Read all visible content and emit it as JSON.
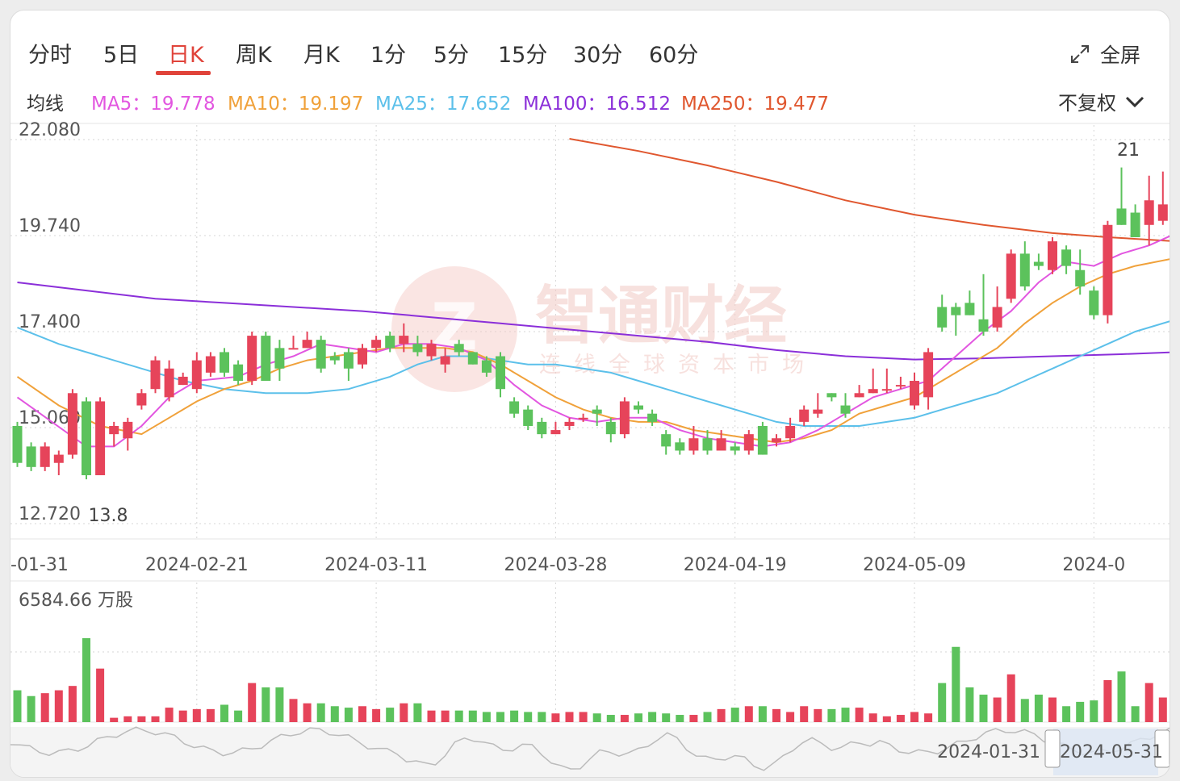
{
  "tabs": [
    {
      "label": "分时"
    },
    {
      "label": "5日"
    },
    {
      "label": "日K"
    },
    {
      "label": "周K"
    },
    {
      "label": "月K"
    },
    {
      "label": "1分"
    },
    {
      "label": "5分"
    },
    {
      "label": "15分"
    },
    {
      "label": "30分"
    },
    {
      "label": "60分"
    }
  ],
  "active_tab": "日K",
  "fullscreen_label": "全屏",
  "ma_header": "均线",
  "ma_legend": [
    {
      "label": "MA5：19.778",
      "color": "#e256e0"
    },
    {
      "label": "MA10：19.197",
      "color": "#f0a13a"
    },
    {
      "label": "MA25：17.652",
      "color": "#5cc0ea"
    },
    {
      "label": "MA100：16.512",
      "color": "#8b2fd9"
    },
    {
      "label": "MA250：19.477",
      "color": "#e0572f"
    }
  ],
  "adjust_label": "不复权",
  "watermark": {
    "title": "智通财经",
    "subtitle": "连线全球资本市场"
  },
  "colors": {
    "up": "#e6445a",
    "down": "#5cc25c",
    "grid": "#d6d6d6"
  },
  "chart_data": {
    "type": "candlestick",
    "y_ticks": [
      "22.080",
      "19.740",
      "17.400",
      "15.060",
      "12.720"
    ],
    "ylim": [
      12.72,
      22.08
    ],
    "x_ticks": [
      {
        "label": "-01-31",
        "index": 0
      },
      {
        "label": "2024-02-21",
        "index": 13
      },
      {
        "label": "2024-03-11",
        "index": 26
      },
      {
        "label": "2024-03-28",
        "index": 39
      },
      {
        "label": "2024-04-19",
        "index": 52
      },
      {
        "label": "2024-05-09",
        "index": 65
      },
      {
        "label": "2024-0",
        "index": 78
      }
    ],
    "high_label": "21",
    "low_label": "13.8",
    "candles": [
      [
        15.1,
        14.2,
        15.2,
        14.1
      ],
      [
        14.6,
        14.1,
        14.7,
        14.0
      ],
      [
        14.1,
        14.6,
        14.7,
        14.0
      ],
      [
        14.2,
        14.4,
        14.5,
        13.9
      ],
      [
        14.4,
        15.9,
        16.0,
        14.3
      ],
      [
        15.7,
        13.9,
        15.8,
        13.8
      ],
      [
        13.9,
        15.7,
        15.8,
        13.9
      ],
      [
        14.9,
        15.1,
        15.2,
        14.6
      ],
      [
        14.8,
        15.2,
        15.3,
        14.5
      ],
      [
        15.6,
        15.9,
        16.0,
        15.5
      ],
      [
        16.0,
        16.7,
        16.8,
        15.9
      ],
      [
        15.8,
        16.5,
        16.7,
        15.7
      ],
      [
        16.1,
        16.3,
        16.4,
        16.1
      ],
      [
        16.0,
        16.7,
        16.9,
        15.9
      ],
      [
        16.4,
        16.8,
        16.9,
        16.3
      ],
      [
        16.9,
        16.4,
        17.0,
        16.3
      ],
      [
        16.6,
        16.2,
        16.7,
        16.1
      ],
      [
        16.2,
        17.3,
        17.4,
        16.1
      ],
      [
        17.3,
        16.2,
        17.4,
        16.2
      ],
      [
        17.0,
        16.5,
        17.2,
        16.2
      ],
      [
        17.0,
        17.0,
        17.3,
        17.0
      ],
      [
        17.0,
        17.2,
        17.4,
        17.0
      ],
      [
        17.2,
        16.5,
        17.3,
        16.4
      ],
      [
        16.8,
        16.7,
        16.9,
        16.6
      ],
      [
        16.9,
        16.5,
        17.0,
        16.2
      ],
      [
        16.6,
        17.0,
        17.1,
        16.5
      ],
      [
        17.0,
        17.2,
        17.3,
        16.9
      ],
      [
        17.3,
        17.0,
        17.4,
        16.9
      ],
      [
        17.1,
        17.3,
        17.6,
        16.9
      ],
      [
        17.1,
        16.9,
        17.3,
        16.8
      ],
      [
        16.8,
        17.1,
        17.2,
        16.7
      ],
      [
        16.6,
        16.8,
        17.0,
        16.4
      ],
      [
        17.1,
        16.9,
        17.2,
        16.8
      ],
      [
        16.9,
        16.6,
        16.9,
        16.6
      ],
      [
        16.7,
        16.4,
        16.8,
        16.3
      ],
      [
        16.8,
        16.0,
        16.9,
        15.8
      ],
      [
        15.7,
        15.4,
        15.8,
        15.3
      ],
      [
        15.5,
        15.1,
        15.6,
        15.0
      ],
      [
        15.2,
        14.9,
        15.3,
        14.8
      ],
      [
        14.9,
        15.0,
        15.2,
        14.9
      ],
      [
        15.1,
        15.2,
        15.3,
        15.0
      ],
      [
        15.3,
        15.3,
        15.4,
        15.2
      ],
      [
        15.5,
        15.4,
        15.6,
        15.1
      ],
      [
        15.2,
        14.9,
        15.3,
        14.7
      ],
      [
        14.9,
        15.7,
        15.8,
        14.8
      ],
      [
        15.6,
        15.5,
        15.7,
        15.4
      ],
      [
        15.4,
        15.2,
        15.5,
        15.1
      ],
      [
        14.9,
        14.6,
        15.0,
        14.4
      ],
      [
        14.7,
        14.5,
        14.8,
        14.4
      ],
      [
        14.5,
        14.8,
        15.1,
        14.4
      ],
      [
        14.8,
        14.5,
        15.0,
        14.4
      ],
      [
        14.5,
        14.8,
        15.0,
        14.6
      ],
      [
        14.6,
        14.5,
        14.7,
        14.4
      ],
      [
        14.5,
        14.9,
        15.0,
        14.4
      ],
      [
        15.1,
        14.4,
        15.2,
        14.4
      ],
      [
        14.7,
        14.8,
        14.9,
        14.6
      ],
      [
        14.8,
        15.1,
        15.3,
        14.7
      ],
      [
        15.2,
        15.5,
        15.6,
        15.1
      ],
      [
        15.4,
        15.5,
        15.9,
        15.3
      ],
      [
        15.9,
        15.8,
        15.9,
        15.7
      ],
      [
        15.6,
        15.4,
        15.9,
        15.3
      ],
      [
        15.8,
        15.9,
        16.1,
        15.8
      ],
      [
        15.9,
        16.0,
        16.5,
        15.9
      ],
      [
        16.0,
        16.0,
        16.5,
        15.9
      ],
      [
        16.1,
        16.1,
        16.3,
        16.0
      ],
      [
        15.6,
        16.2,
        16.4,
        15.5
      ],
      [
        15.8,
        16.9,
        17.0,
        15.5
      ],
      [
        18.0,
        17.5,
        18.3,
        17.4
      ],
      [
        18.0,
        17.8,
        18.1,
        17.3
      ],
      [
        18.1,
        17.8,
        18.4,
        17.8
      ],
      [
        17.7,
        17.4,
        18.8,
        17.3
      ],
      [
        17.5,
        18.0,
        18.5,
        17.4
      ],
      [
        18.2,
        19.3,
        19.4,
        18.1
      ],
      [
        19.3,
        18.5,
        19.6,
        18.4
      ],
      [
        19.1,
        19.0,
        19.3,
        18.9
      ],
      [
        18.9,
        19.6,
        19.7,
        18.8
      ],
      [
        19.4,
        19.0,
        19.5,
        18.8
      ],
      [
        18.9,
        18.5,
        19.4,
        18.3
      ],
      [
        18.4,
        17.8,
        18.5,
        17.7
      ],
      [
        17.8,
        20.0,
        20.1,
        17.6
      ],
      [
        20.4,
        20.0,
        21.4,
        20.0
      ],
      [
        20.3,
        19.7,
        20.5,
        19.7
      ],
      [
        20.0,
        20.6,
        21.2,
        19.5
      ],
      [
        20.1,
        20.5,
        21.3,
        20.0
      ]
    ],
    "ma5": [
      [
        0,
        15.8
      ],
      [
        5,
        14.6
      ],
      [
        7,
        14.6
      ],
      [
        9,
        15.1
      ],
      [
        11,
        15.8
      ],
      [
        13,
        16.2
      ],
      [
        16,
        16.3
      ],
      [
        18,
        16.6
      ],
      [
        20,
        16.8
      ],
      [
        22,
        17.1
      ],
      [
        24,
        17.0
      ],
      [
        26,
        16.9
      ],
      [
        28,
        17.1
      ],
      [
        30,
        17.1
      ],
      [
        32,
        17.0
      ],
      [
        34,
        16.7
      ],
      [
        36,
        16.1
      ],
      [
        38,
        15.6
      ],
      [
        40,
        15.3
      ],
      [
        42,
        15.2
      ],
      [
        44,
        15.3
      ],
      [
        46,
        15.3
      ],
      [
        48,
        15.0
      ],
      [
        50,
        14.8
      ],
      [
        52,
        14.7
      ],
      [
        54,
        14.6
      ],
      [
        56,
        14.7
      ],
      [
        58,
        15.0
      ],
      [
        60,
        15.4
      ],
      [
        62,
        15.8
      ],
      [
        64,
        16.0
      ],
      [
        66,
        16.2
      ],
      [
        68,
        16.8
      ],
      [
        70,
        17.4
      ],
      [
        72,
        17.9
      ],
      [
        74,
        18.6
      ],
      [
        76,
        19.1
      ],
      [
        78,
        19.0
      ],
      [
        80,
        19.3
      ],
      [
        82,
        19.5
      ],
      [
        84,
        19.8
      ]
    ],
    "ma10": [
      [
        0,
        16.3
      ],
      [
        3,
        15.6
      ],
      [
        6,
        15.1
      ],
      [
        9,
        14.9
      ],
      [
        11,
        15.3
      ],
      [
        13,
        15.7
      ],
      [
        15,
        16.0
      ],
      [
        17,
        16.2
      ],
      [
        19,
        16.5
      ],
      [
        21,
        16.7
      ],
      [
        23,
        16.8
      ],
      [
        25,
        16.9
      ],
      [
        27,
        17.0
      ],
      [
        29,
        17.0
      ],
      [
        31,
        17.0
      ],
      [
        33,
        16.9
      ],
      [
        35,
        16.6
      ],
      [
        37,
        16.2
      ],
      [
        39,
        15.8
      ],
      [
        41,
        15.5
      ],
      [
        43,
        15.3
      ],
      [
        45,
        15.2
      ],
      [
        47,
        15.2
      ],
      [
        49,
        15.0
      ],
      [
        51,
        14.9
      ],
      [
        53,
        14.8
      ],
      [
        55,
        14.7
      ],
      [
        57,
        14.8
      ],
      [
        59,
        15.0
      ],
      [
        61,
        15.4
      ],
      [
        63,
        15.6
      ],
      [
        65,
        15.8
      ],
      [
        67,
        16.2
      ],
      [
        69,
        16.6
      ],
      [
        71,
        17.0
      ],
      [
        73,
        17.6
      ],
      [
        75,
        18.1
      ],
      [
        77,
        18.5
      ],
      [
        79,
        18.8
      ],
      [
        81,
        19.0
      ],
      [
        84,
        19.2
      ]
    ],
    "ma25": [
      [
        0,
        17.5
      ],
      [
        3,
        17.1
      ],
      [
        6,
        16.8
      ],
      [
        9,
        16.5
      ],
      [
        12,
        16.2
      ],
      [
        15,
        16.0
      ],
      [
        18,
        15.9
      ],
      [
        21,
        15.9
      ],
      [
        24,
        16.0
      ],
      [
        27,
        16.3
      ],
      [
        29,
        16.6
      ],
      [
        31,
        16.8
      ],
      [
        33,
        16.8
      ],
      [
        35,
        16.7
      ],
      [
        37,
        16.6
      ],
      [
        39,
        16.6
      ],
      [
        41,
        16.5
      ],
      [
        43,
        16.4
      ],
      [
        45,
        16.2
      ],
      [
        47,
        16.0
      ],
      [
        49,
        15.8
      ],
      [
        51,
        15.6
      ],
      [
        53,
        15.4
      ],
      [
        55,
        15.2
      ],
      [
        57,
        15.1
      ],
      [
        59,
        15.1
      ],
      [
        61,
        15.1
      ],
      [
        63,
        15.2
      ],
      [
        65,
        15.3
      ],
      [
        67,
        15.5
      ],
      [
        69,
        15.7
      ],
      [
        71,
        15.9
      ],
      [
        73,
        16.2
      ],
      [
        75,
        16.5
      ],
      [
        77,
        16.8
      ],
      [
        79,
        17.1
      ],
      [
        81,
        17.4
      ],
      [
        84,
        17.7
      ]
    ],
    "ma100": [
      [
        0,
        18.6
      ],
      [
        5,
        18.4
      ],
      [
        10,
        18.2
      ],
      [
        15,
        18.1
      ],
      [
        20,
        18.0
      ],
      [
        25,
        17.9
      ],
      [
        30,
        17.75
      ],
      [
        35,
        17.6
      ],
      [
        40,
        17.45
      ],
      [
        45,
        17.3
      ],
      [
        50,
        17.15
      ],
      [
        55,
        16.95
      ],
      [
        60,
        16.8
      ],
      [
        65,
        16.72
      ],
      [
        70,
        16.75
      ],
      [
        75,
        16.8
      ],
      [
        80,
        16.85
      ],
      [
        84,
        16.9
      ]
    ],
    "ma250": [
      [
        40,
        22.1
      ],
      [
        45,
        21.8
      ],
      [
        50,
        21.45
      ],
      [
        55,
        21.05
      ],
      [
        60,
        20.6
      ],
      [
        65,
        20.25
      ],
      [
        70,
        20.0
      ],
      [
        75,
        19.8
      ],
      [
        79,
        19.7
      ],
      [
        84,
        19.6
      ]
    ],
    "volume_label": "6584.66 万股",
    "volume": [
      22,
      18,
      20,
      22,
      25,
      58,
      37,
      3,
      4,
      4,
      4,
      10,
      8,
      9,
      9,
      12,
      8,
      27,
      24,
      24,
      16,
      13,
      13,
      11,
      10,
      11,
      9,
      10,
      13,
      13,
      8,
      8,
      8,
      8,
      7,
      7,
      8,
      7,
      7,
      6,
      7,
      7,
      6,
      5,
      5,
      6,
      7,
      6,
      5,
      5,
      7,
      9,
      10,
      11,
      11,
      9,
      7,
      11,
      9,
      9,
      10,
      10,
      6,
      4,
      5,
      7,
      6,
      27,
      52,
      24,
      19,
      17,
      33,
      16,
      19,
      17,
      11,
      14,
      15,
      29,
      35,
      11,
      27,
      17
    ]
  },
  "navigator": {
    "start_label": "2024-01-31",
    "end_label": "2024-05-31"
  }
}
